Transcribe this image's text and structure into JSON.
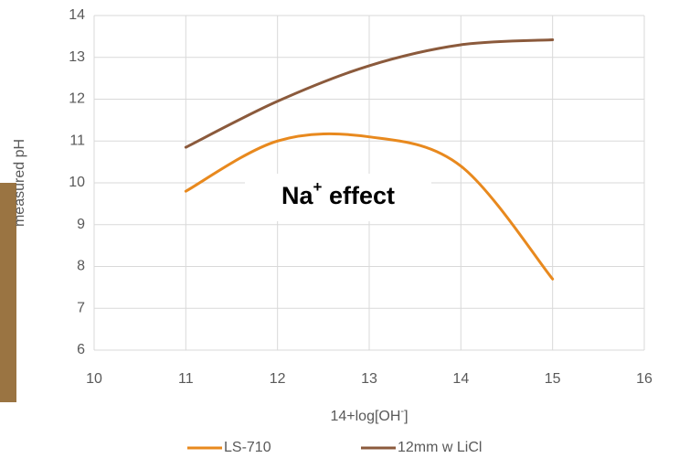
{
  "chart_data": {
    "type": "line",
    "x": [
      11,
      12,
      13,
      14,
      15
    ],
    "series": [
      {
        "name": "LS-710",
        "color": "#e8891e",
        "values": [
          9.8,
          11.0,
          11.1,
          10.4,
          7.7
        ]
      },
      {
        "name": "12mm w LiCl",
        "color": "#8b5a3c",
        "values": [
          10.85,
          11.95,
          12.8,
          13.3,
          13.42
        ]
      }
    ],
    "xlim": [
      10,
      16
    ],
    "xticks": [
      10,
      11,
      12,
      13,
      14,
      15,
      16
    ],
    "ylim": [
      6,
      14
    ],
    "yticks": [
      6,
      7,
      8,
      9,
      10,
      11,
      12,
      13,
      14
    ],
    "ylabel": "measured pH",
    "xlabel": {
      "text": "14+log[OH",
      "sup": "-",
      "after": "]"
    },
    "annotation": {
      "text": "Na",
      "sup": "+",
      "after": " effect"
    },
    "grid": true,
    "smooth": true,
    "legend": "bottom"
  }
}
